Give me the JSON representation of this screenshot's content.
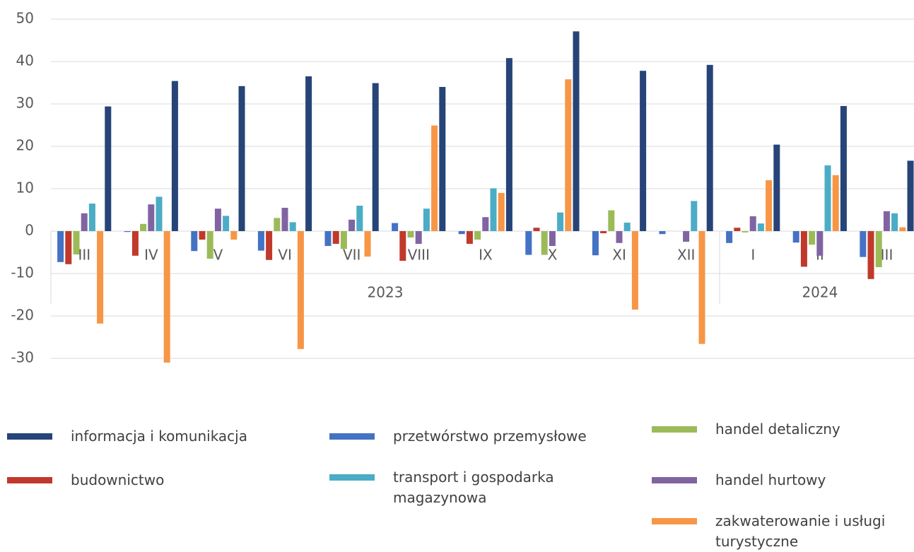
{
  "chart_data": {
    "type": "bar",
    "categories": [
      "III",
      "IV",
      "V",
      "VI",
      "VII",
      "VIII",
      "IX",
      "X",
      "XI",
      "XII",
      "I",
      "II",
      "III"
    ],
    "x_groups": [
      {
        "label": "2023",
        "span": 10
      },
      {
        "label": "2024",
        "span": 3
      }
    ],
    "series": [
      {
        "name": "przetwórstwo przemysłowe",
        "color": "#4472c4",
        "values": [
          -7.3,
          -0.2,
          -4.7,
          -4.6,
          -3.5,
          1.9,
          -0.7,
          -5.6,
          -5.7,
          -0.7,
          -2.8,
          -2.7,
          -6.1
        ]
      },
      {
        "name": "budownictwo",
        "color": "#c0392b",
        "values": [
          -7.8,
          -5.8,
          -2,
          -6.8,
          -3,
          -7,
          -3,
          0.8,
          -0.5,
          0,
          0.8,
          -8.4,
          -11.3
        ]
      },
      {
        "name": "handel detaliczny",
        "color": "#9bbb59",
        "values": [
          -5.5,
          1.7,
          -6.5,
          3.1,
          -4.2,
          -1.5,
          -2,
          -5.6,
          4.9,
          0,
          -0.3,
          -3.2,
          -8.5
        ]
      },
      {
        "name": "handel hurtowy",
        "color": "#8064a2",
        "values": [
          4.2,
          6.3,
          5.3,
          5.5,
          2.7,
          -3,
          3.3,
          -3.5,
          -2.8,
          -2.5,
          3.5,
          -5.8,
          4.7
        ]
      },
      {
        "name": "transport i gospodarka magazynowa",
        "color": "#4bacc6",
        "values": [
          6.5,
          8.1,
          3.6,
          2.1,
          6,
          5.3,
          10.1,
          4.4,
          2,
          7.1,
          1.8,
          15.5,
          4.2
        ]
      },
      {
        "name": "zakwaterowanie i usługi turystyczne",
        "color": "#f79646",
        "values": [
          -21.8,
          -31,
          -2,
          -27.8,
          -6,
          24.9,
          9,
          35.8,
          -18.5,
          -26.6,
          12,
          13.2,
          0.9
        ]
      },
      {
        "name": "informacja i komunikacja",
        "color": "#264478",
        "values": [
          29.4,
          35.4,
          34.2,
          36.5,
          34.9,
          34,
          40.8,
          47.1,
          37.8,
          39.2,
          20.4,
          29.5,
          16.6
        ]
      }
    ],
    "ylim": [
      -30,
      50
    ],
    "yticks": [
      -30,
      -20,
      -10,
      0,
      10,
      20,
      30,
      40,
      50
    ],
    "grid": true
  }
}
